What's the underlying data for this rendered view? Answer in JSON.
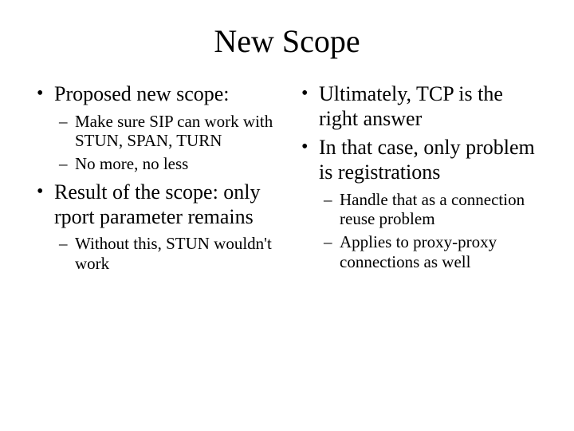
{
  "title": "New Scope",
  "left": {
    "b1": "Proposed new scope:",
    "b1_subs": [
      "Make sure SIP can work with STUN, SPAN, TURN",
      "No more, no less"
    ],
    "b2": "Result of the scope: only rport parameter remains",
    "b2_subs": [
      "Without this, STUN wouldn't work"
    ]
  },
  "right": {
    "b1": "Ultimately, TCP is the right answer",
    "b2": "In that case, only problem is registrations",
    "b2_subs": [
      "Handle that as a connection reuse problem",
      "Applies to proxy-proxy connections as well"
    ]
  }
}
